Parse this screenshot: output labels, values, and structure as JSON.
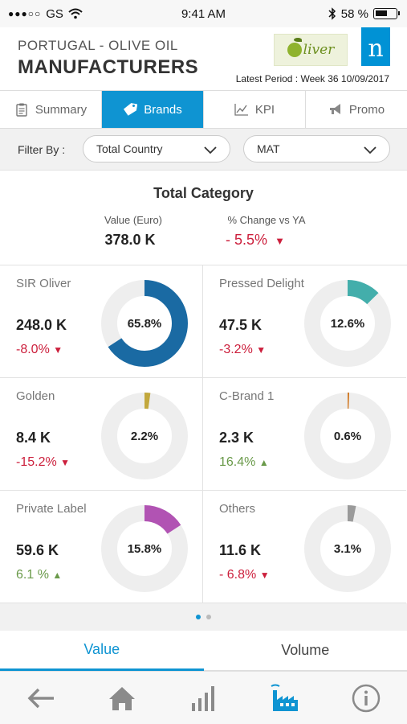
{
  "status_bar": {
    "carrier": "GS",
    "signal": "●●●○○",
    "time": "9:41 AM",
    "battery": "58 %",
    "battery_level": 0.58
  },
  "header": {
    "subtitle": "PORTUGAL - OLIVE OIL",
    "title": "MANUFACTURERS",
    "logo_text": "liver",
    "brand_logo": "n",
    "period": "Latest Period : Week 36 10/09/2017"
  },
  "tabs": [
    {
      "label": "Summary",
      "icon": "clipboard-icon",
      "active": false
    },
    {
      "label": "Brands",
      "icon": "tag-icon",
      "active": true
    },
    {
      "label": "KPI",
      "icon": "line-chart-icon",
      "active": false
    },
    {
      "label": "Promo",
      "icon": "megaphone-icon",
      "active": false
    }
  ],
  "filter": {
    "label": "Filter By :",
    "geography": "Total Country",
    "period": "MAT"
  },
  "total": {
    "title": "Total Category",
    "value_label": "Value (Euro)",
    "value": "378.0 K",
    "change_label": "% Change vs YA",
    "change": "- 5.5%",
    "direction": "down"
  },
  "brands": [
    {
      "name": "SIR Oliver",
      "value": "248.0 K",
      "change": "-8.0%",
      "direction": "down",
      "share_label": "65.8%",
      "share": 65.8,
      "color": "#1a6aa3"
    },
    {
      "name": "Pressed Delight",
      "value": "47.5 K",
      "change": "-3.2%",
      "direction": "down",
      "share_label": "12.6%",
      "share": 12.6,
      "color": "#43aeab"
    },
    {
      "name": "Golden",
      "value": "8.4 K",
      "change": "-15.2%",
      "direction": "down",
      "share_label": "2.2%",
      "share": 2.2,
      "color": "#c2a83d"
    },
    {
      "name": "C-Brand 1",
      "value": "2.3 K",
      "change": "16.4%",
      "direction": "up",
      "share_label": "0.6%",
      "share": 0.6,
      "color": "#d0761e"
    },
    {
      "name": "Private Label",
      "value": "59.6 K",
      "change": "6.1 %",
      "direction": "up",
      "share_label": "15.8%",
      "share": 15.8,
      "color": "#b153b3"
    },
    {
      "name": "Others",
      "value": "11.6 K",
      "change": "- 6.8%",
      "direction": "down",
      "share_label": "3.1%",
      "share": 3.1,
      "color": "#9a9a9a"
    }
  ],
  "pager": {
    "pages": 2,
    "current": 1
  },
  "toggle": {
    "value_label": "Value",
    "volume_label": "Volume",
    "selected": "value"
  },
  "nav": [
    {
      "icon": "back-arrow-icon"
    },
    {
      "icon": "home-icon"
    },
    {
      "icon": "bar-chart-icon"
    },
    {
      "icon": "factory-icon",
      "active": true
    },
    {
      "icon": "info-icon"
    }
  ],
  "colors": {
    "accent": "#0f94d2",
    "negative": "#cc1f3c",
    "positive": "#6a9a4a"
  }
}
